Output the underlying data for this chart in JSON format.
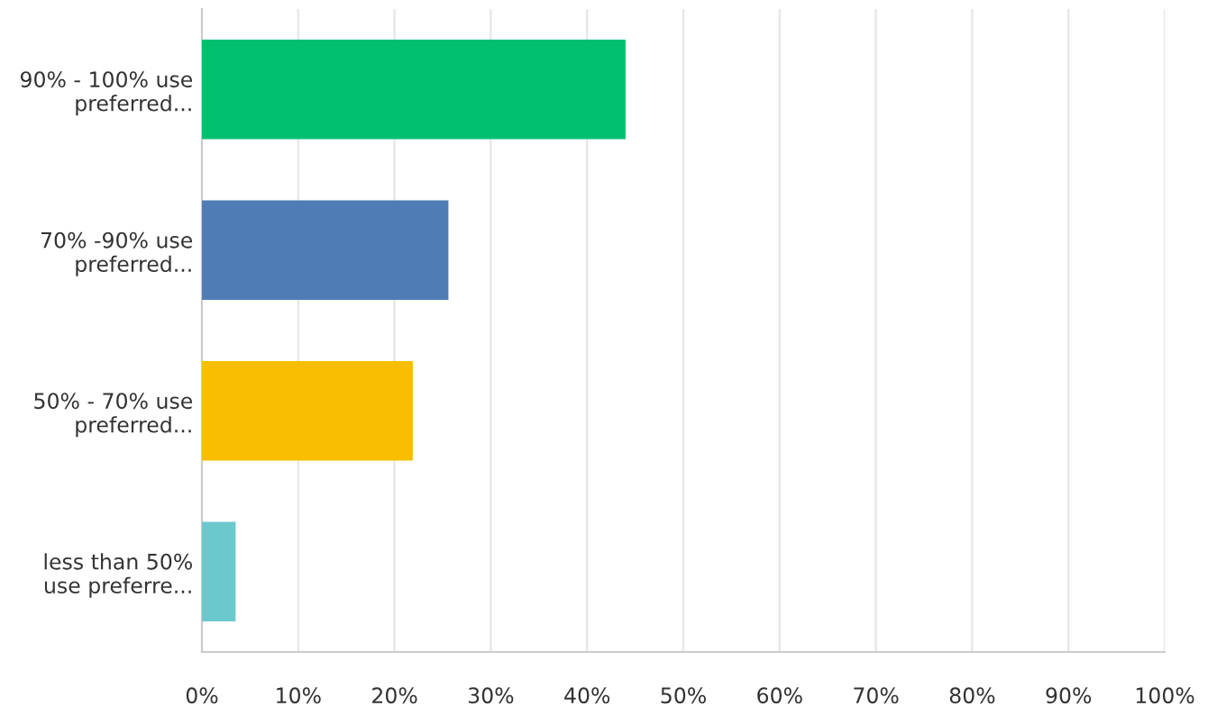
{
  "chart_data": {
    "type": "bar",
    "orientation": "horizontal",
    "categories": [
      "90% - 100% use\npreferred...",
      "70% -90% use\npreferred...",
      "50% - 70% use\npreferred...",
      "less than 50%\nuse preferre..."
    ],
    "values": [
      44.0,
      25.6,
      21.9,
      3.5
    ],
    "colors": [
      "#00bf6f",
      "#507cb6",
      "#f9be00",
      "#6bc8cd"
    ],
    "xlim": [
      0,
      100
    ],
    "xticks": [
      {
        "value": 0,
        "label": "0%"
      },
      {
        "value": 10,
        "label": "10%"
      },
      {
        "value": 20,
        "label": "20%"
      },
      {
        "value": 30,
        "label": "30%"
      },
      {
        "value": 40,
        "label": "40%"
      },
      {
        "value": 50,
        "label": "50%"
      },
      {
        "value": 60,
        "label": "60%"
      },
      {
        "value": 70,
        "label": "70%"
      },
      {
        "value": 80,
        "label": "80%"
      },
      {
        "value": 90,
        "label": "90%"
      },
      {
        "value": 100,
        "label": "100%"
      }
    ],
    "grid": "x",
    "legend": false
  }
}
